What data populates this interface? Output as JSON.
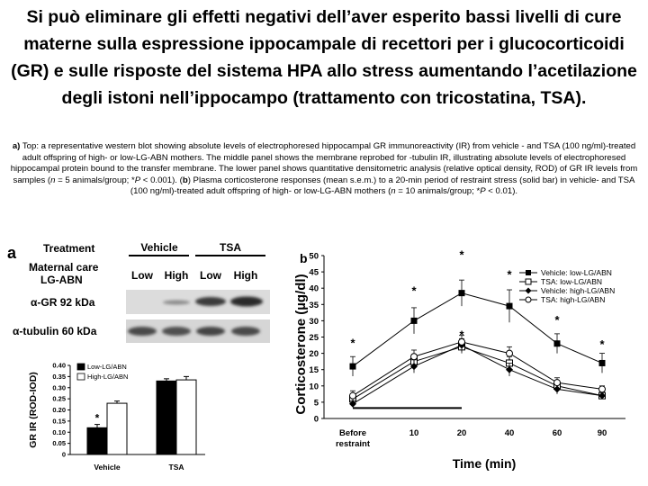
{
  "slide": {
    "title": "Si può eliminare gli effetti negativi dell’aver esperito bassi livelli di cure materne sulla espressione ippocampale di recettori per i glucocorticoidi (GR) e sulle risposte del sistema HPA allo stress aumentando l’acetilazione degli istoni nell’ippocampo (trattamento con tricostatina, TSA)."
  },
  "caption": {
    "a_label": "a)",
    "a_text": " Top: a representative western blot showing absolute levels of electrophoresed hippocampal GR immunoreactivity (IR) from vehicle - and TSA (100 ng/ml)-treated adult offspring of high- or low-LG-ABN mothers. The middle panel shows the membrane reprobed for -tubulin IR, illustrating absolute levels of electrophoresed hippocampal protein bound to the transfer membrane. The lower panel shows quantitative densitometric analysis (relative optical density, ROD) of GR IR levels from samples (",
    "n1": "n",
    "a_text2": " = 5 animals/group; *",
    "p1": "P",
    "a_text3": " < 0.001). (",
    "b_label": "b",
    "b_text": ") Plasma corticosterone responses (mean    s.e.m.) to a 20-min period of restraint stress (solid bar) in vehicle- and TSA (100 ng/ml)-treated adult offspring of high- or low-LG-ABN mothers (",
    "n2": "n",
    "b_text2": " = 10 animals/group; *",
    "p2": "P",
    "b_text3": " < 0.01)."
  },
  "panel_a": {
    "label": "a",
    "treatment_label": "Treatment",
    "vehicle_label": "Vehicle",
    "tsa_label": "TSA",
    "maternal_care_label": "Maternal care",
    "lg_abn_label": "LG-ABN",
    "low_label": "Low",
    "high_label": "High",
    "gr_band_label": "α-GR 92 kDa",
    "tubulin_band_label": "α-tubulin 60 kDa"
  },
  "chart_data": [
    {
      "type": "bar",
      "title": "",
      "ylabel": "GR IR (ROD-IOD)",
      "xlabel": "",
      "ylim": [
        0,
        0.4
      ],
      "yticks": [
        "0",
        "0.05",
        "0.10",
        "0.15",
        "0.20",
        "0.25",
        "0.30",
        "0.35",
        "0.40"
      ],
      "categories": [
        "Vehicle",
        "TSA"
      ],
      "series": [
        {
          "name": "Low-LG/ABN",
          "color": "#000000",
          "values": [
            0.12,
            0.33
          ],
          "errors": [
            0.015,
            0.01
          ]
        },
        {
          "name": "High-LG/ABN",
          "color": "#ffffff",
          "values": [
            0.23,
            0.335
          ],
          "errors": [
            0.01,
            0.015
          ]
        }
      ],
      "annotations": [
        "*"
      ],
      "legend": "top-left"
    },
    {
      "type": "line",
      "panel_label": "b",
      "title": "",
      "ylabel": "Corticosterone (µg/dl)",
      "xlabel": "Time (min)",
      "ylim": [
        0,
        50
      ],
      "yticks": [
        "0",
        "5",
        "10",
        "15",
        "20",
        "25",
        "30",
        "35",
        "40",
        "45",
        "50"
      ],
      "x": [
        "Before restraint",
        "10",
        "20",
        "40",
        "60",
        "90"
      ],
      "series": [
        {
          "name": "Vehicle: low-LG/ABN",
          "marker": "filled-square",
          "values": [
            16,
            30,
            38.5,
            34.5,
            23,
            17
          ],
          "errors": [
            3,
            4,
            4,
            5,
            3,
            3
          ]
        },
        {
          "name": "TSA: low-LG/ABN",
          "marker": "open-square",
          "values": [
            6,
            17.5,
            22,
            17,
            10,
            7
          ],
          "errors": [
            1.5,
            2,
            2,
            2,
            1.5,
            1
          ]
        },
        {
          "name": "Vehicle: high-LG/ABN",
          "marker": "filled-diamond",
          "values": [
            4.5,
            16,
            22.5,
            15,
            9,
            7
          ],
          "errors": [
            1,
            2,
            2,
            2,
            1.5,
            1
          ]
        },
        {
          "name": "TSA: high-LG/ABN",
          "marker": "open-circle",
          "values": [
            7,
            19,
            23.5,
            20,
            11,
            9
          ],
          "errors": [
            1.5,
            2,
            2,
            2,
            1.5,
            1
          ]
        }
      ],
      "annotations": [
        "*",
        "*",
        "*",
        "*",
        "*",
        "*",
        "*"
      ],
      "restraint_bar": "solid bar from before restraint to 20 min",
      "legend": "top-right"
    }
  ]
}
